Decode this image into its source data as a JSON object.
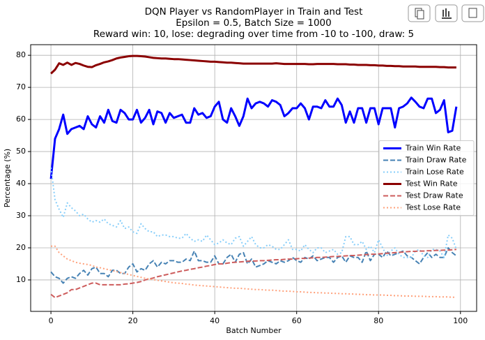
{
  "chart_data": {
    "type": "line",
    "title": [
      "DQN Player vs RandomPlayer in Train and Test",
      "Epsilon = 0.5, Batch Size = 1000",
      "Reward win: 10, lose: degrading over time from -10 to -100, draw: 5"
    ],
    "xlabel": "Batch Number",
    "ylabel": "Percentage (%)",
    "x": [
      0,
      1,
      2,
      3,
      4,
      5,
      6,
      7,
      8,
      9,
      10,
      11,
      12,
      13,
      14,
      15,
      16,
      17,
      18,
      19,
      20,
      21,
      22,
      23,
      24,
      25,
      26,
      27,
      28,
      29,
      30,
      31,
      32,
      33,
      34,
      35,
      36,
      37,
      38,
      39,
      40,
      41,
      42,
      43,
      44,
      45,
      46,
      47,
      48,
      49,
      50,
      51,
      52,
      53,
      54,
      55,
      56,
      57,
      58,
      59,
      60,
      61,
      62,
      63,
      64,
      65,
      66,
      67,
      68,
      69,
      70,
      71,
      72,
      73,
      74,
      75,
      76,
      77,
      78,
      79,
      80,
      81,
      82,
      83,
      84,
      85,
      86,
      87,
      88,
      89,
      90,
      91,
      92,
      93,
      94,
      95,
      96,
      97,
      98,
      99
    ],
    "xlim": [
      -4.95,
      103.95
    ],
    "xticks": [
      0,
      20,
      40,
      60,
      80,
      100
    ],
    "ylim": [
      0.2,
      83.3
    ],
    "yticks": [
      10,
      20,
      30,
      40,
      50,
      60,
      70,
      80
    ],
    "grid": true,
    "legend": "center right",
    "series": [
      {
        "name": "Train Win Rate",
        "color": "#0000ff",
        "linestyle": "solid",
        "linewidth": 3,
        "values": [
          41.5,
          54,
          57,
          61.5,
          55.5,
          57,
          57.5,
          58,
          57,
          61,
          58.5,
          57.5,
          61,
          59,
          63,
          59.5,
          59,
          63,
          62,
          60,
          60,
          63,
          59,
          60.5,
          63,
          58.5,
          62.5,
          62,
          59,
          62,
          60.5,
          61,
          61.5,
          59,
          59,
          63.5,
          61.5,
          62,
          60.5,
          61,
          64,
          65.5,
          60,
          59,
          63.5,
          61,
          58,
          61,
          66.5,
          63.5,
          65,
          65.5,
          65,
          64,
          66,
          65.5,
          64.5,
          61,
          62,
          63.5,
          63.5,
          65,
          63.5,
          60,
          64,
          64,
          63.5,
          66,
          64,
          64,
          66.5,
          64.5,
          59,
          62.5,
          59,
          63.5,
          63.5,
          59,
          63.5,
          63.5,
          58.5,
          63.5,
          63.5,
          63.5,
          57.5,
          63.5,
          64,
          65,
          66.8,
          65.5,
          64,
          63.5,
          66.5,
          66.5,
          62,
          63,
          66,
          56,
          56.5,
          64
        ]
      },
      {
        "name": "Train Draw Rate",
        "color": "#4682b4",
        "linestyle": "dashed",
        "linewidth": 2,
        "values": [
          12.5,
          11,
          10.5,
          9,
          10.5,
          11,
          10.5,
          12,
          13,
          11.5,
          13.5,
          14,
          12,
          12,
          11,
          13,
          13,
          12,
          12,
          14,
          15,
          12.5,
          13.5,
          13,
          15,
          16,
          14,
          15.5,
          15,
          16,
          16,
          15.5,
          15.5,
          16.5,
          16,
          19,
          16,
          16,
          15.5,
          15.5,
          17.5,
          15,
          15,
          17,
          18,
          15.5,
          18,
          18.5,
          15,
          16.5,
          14,
          14.5,
          15,
          16,
          15.5,
          15,
          16,
          15.5,
          16,
          17,
          16,
          15.5,
          17,
          16.5,
          17.5,
          16,
          16.5,
          17,
          17,
          15.5,
          17,
          17.5,
          15.5,
          17.5,
          17,
          17,
          15.5,
          19,
          16,
          18,
          18,
          17,
          19,
          17.5,
          18,
          18.5,
          19,
          17.5,
          17,
          16,
          15,
          17,
          18.5,
          17,
          18,
          17,
          17,
          20,
          18.5,
          17.5
        ]
      },
      {
        "name": "Train Lose Rate",
        "color": "#87cefa",
        "linestyle": "dotted",
        "linewidth": 2,
        "values": [
          45,
          35,
          32,
          29.5,
          34,
          32.5,
          31.5,
          30,
          30.5,
          29,
          28,
          28.5,
          28,
          29,
          27.5,
          27,
          26.5,
          28.5,
          26,
          26.5,
          25,
          24.5,
          27.5,
          26,
          25,
          25,
          23.5,
          24,
          24,
          23.5,
          23.5,
          23,
          23,
          24.5,
          23,
          22,
          22.5,
          22,
          24,
          22.5,
          21,
          21.5,
          22.5,
          21.5,
          21,
          23,
          23.5,
          20.5,
          22,
          23.5,
          21,
          20,
          20,
          21,
          20.5,
          19.5,
          19.5,
          21,
          22.5,
          19.5,
          19.5,
          19,
          21,
          19.5,
          18.5,
          20,
          20,
          18.5,
          19,
          19.5,
          18,
          18.5,
          23.5,
          23.5,
          21,
          21,
          22,
          19.5,
          20.5,
          18.5,
          22.5,
          20,
          17.5,
          19,
          20,
          18,
          17,
          17,
          17,
          19,
          19.5,
          17.5,
          17,
          19.5,
          19.5,
          19,
          17,
          24,
          23,
          19.5
        ]
      },
      {
        "name": "Test Win Rate",
        "color": "#8b0000",
        "linestyle": "solid",
        "linewidth": 3,
        "values": [
          74.3,
          75.5,
          77.5,
          77,
          77.7,
          77,
          77.6,
          77.3,
          76.8,
          76.4,
          76.3,
          76.9,
          77.3,
          77.8,
          78.1,
          78.5,
          79,
          79.3,
          79.5,
          79.7,
          79.8,
          79.8,
          79.7,
          79.6,
          79.4,
          79.2,
          79.1,
          79,
          79,
          78.9,
          78.8,
          78.8,
          78.7,
          78.6,
          78.5,
          78.4,
          78.3,
          78.2,
          78.1,
          78,
          78,
          77.9,
          77.8,
          77.7,
          77.7,
          77.6,
          77.5,
          77.4,
          77.4,
          77.4,
          77.4,
          77.4,
          77.4,
          77.4,
          77.4,
          77.5,
          77.4,
          77.3,
          77.3,
          77.3,
          77.3,
          77.3,
          77.3,
          77.2,
          77.2,
          77.3,
          77.3,
          77.3,
          77.3,
          77.3,
          77.2,
          77.2,
          77.2,
          77.1,
          77.1,
          77,
          77,
          77,
          76.9,
          76.9,
          76.8,
          76.8,
          76.7,
          76.7,
          76.6,
          76.6,
          76.5,
          76.5,
          76.5,
          76.5,
          76.4,
          76.4,
          76.4,
          76.4,
          76.4,
          76.3,
          76.3,
          76.2,
          76.2,
          76.2
        ]
      },
      {
        "name": "Test Draw Rate",
        "color": "#cd5c5c",
        "linestyle": "dashed",
        "linewidth": 2,
        "values": [
          5.5,
          4.5,
          5,
          5.5,
          6,
          7,
          7,
          7.5,
          8,
          8.5,
          9,
          9,
          8.5,
          8.5,
          8.5,
          8.5,
          8.5,
          8.5,
          8.7,
          8.8,
          9,
          9.2,
          9.5,
          10,
          10.3,
          10.6,
          11,
          11.3,
          11.6,
          11.9,
          12.2,
          12.5,
          12.8,
          13,
          13.3,
          13.5,
          13.8,
          14,
          14.3,
          14.5,
          14.8,
          15,
          15,
          15.2,
          15.4,
          15.5,
          15.6,
          15.7,
          15.8,
          15.9,
          15.9,
          16,
          16,
          16.1,
          16.2,
          16.3,
          16.3,
          16.4,
          16.5,
          16.5,
          16.6,
          16.7,
          16.7,
          16.8,
          16.9,
          17,
          17,
          17.1,
          17.2,
          17.3,
          17.3,
          17.4,
          17.5,
          17.6,
          17.6,
          17.7,
          17.8,
          17.9,
          18,
          18,
          18.1,
          18.2,
          18.3,
          18.4,
          18.5,
          18.6,
          18.7,
          18.8,
          18.9,
          18.9,
          19,
          19,
          19.1,
          19.1,
          19.2,
          19.2,
          19.3,
          19.3,
          19.4,
          19.5
        ]
      },
      {
        "name": "Test Lose Rate",
        "color": "#ffa07a",
        "linestyle": "dotted",
        "linewidth": 2,
        "values": [
          20.5,
          20.5,
          18.5,
          17.5,
          16.5,
          16,
          15.5,
          15.2,
          15,
          14.8,
          14.5,
          14,
          13.8,
          13.5,
          13.2,
          12.9,
          12.6,
          12.3,
          12,
          11.7,
          11.4,
          11.1,
          10.8,
          10.5,
          10.3,
          10.1,
          9.9,
          9.7,
          9.5,
          9.3,
          9.1,
          9,
          8.9,
          8.7,
          8.6,
          8.4,
          8.3,
          8.2,
          8.1,
          8,
          7.9,
          7.8,
          7.7,
          7.6,
          7.5,
          7.4,
          7.4,
          7.3,
          7.2,
          7.1,
          7,
          7,
          6.9,
          6.8,
          6.8,
          6.7,
          6.6,
          6.5,
          6.5,
          6.4,
          6.3,
          6.3,
          6.2,
          6.1,
          6.1,
          6,
          6,
          5.9,
          5.9,
          5.8,
          5.8,
          5.7,
          5.7,
          5.6,
          5.6,
          5.5,
          5.5,
          5.4,
          5.4,
          5.3,
          5.3,
          5.3,
          5.2,
          5.2,
          5.1,
          5.1,
          5,
          5,
          5,
          4.9,
          4.9,
          4.9,
          4.8,
          4.8,
          4.8,
          4.7,
          4.7,
          4.7,
          4.6,
          4.6
        ]
      }
    ]
  }
}
